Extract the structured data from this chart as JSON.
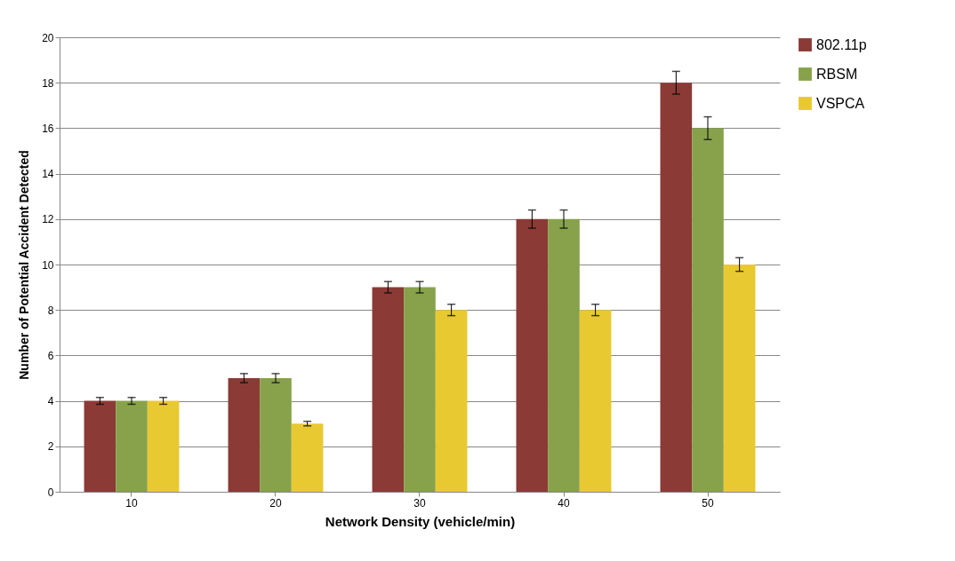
{
  "chart_data": {
    "type": "bar",
    "xlabel": "Network Density (vehicle/min)",
    "ylabel": "Number of Potential Accident Detected",
    "categories": [
      "10",
      "20",
      "30",
      "40",
      "50"
    ],
    "series": [
      {
        "name": "802.11p",
        "color": "#8b3a36",
        "values": [
          4,
          5,
          9,
          12,
          18
        ],
        "errors": [
          0.15,
          0.2,
          0.25,
          0.4,
          0.5
        ]
      },
      {
        "name": "RBSM",
        "color": "#87a24a",
        "values": [
          4,
          5,
          9,
          12,
          16
        ],
        "errors": [
          0.15,
          0.2,
          0.25,
          0.4,
          0.5
        ]
      },
      {
        "name": "VSPCA",
        "color": "#e9c932",
        "values": [
          4,
          3,
          8,
          8,
          10
        ],
        "errors": [
          0.15,
          0.1,
          0.25,
          0.25,
          0.3
        ]
      }
    ],
    "ylim": [
      0,
      20
    ],
    "yticks": [
      0,
      2,
      4,
      6,
      8,
      10,
      12,
      14,
      16,
      18,
      20
    ],
    "grid": "y",
    "legend": "right"
  }
}
